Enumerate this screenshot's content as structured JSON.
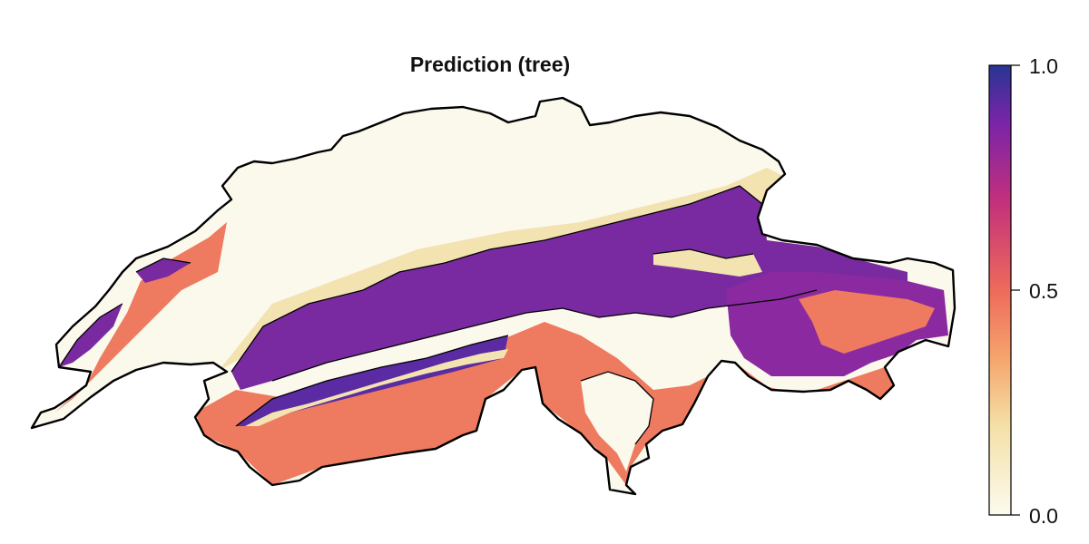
{
  "title": "Prediction (tree)",
  "colorbar": {
    "ticks": [
      "1.0",
      "0.5",
      "0.0"
    ],
    "range": [
      0.0,
      1.0
    ],
    "colormap": [
      "#fcfbef",
      "#f4e0a6",
      "#f5a46d",
      "#ee6a5b",
      "#c2307c",
      "#7b24a8",
      "#283593"
    ]
  },
  "map": {
    "region": "Switzerland",
    "colors": {
      "low": "#fbf8ec",
      "low_mid": "#f2e3b0",
      "mid": "#ee7a60",
      "high": "#7a2aa0",
      "high_alt": "#5b2ba4",
      "outline": "#000000"
    }
  }
}
